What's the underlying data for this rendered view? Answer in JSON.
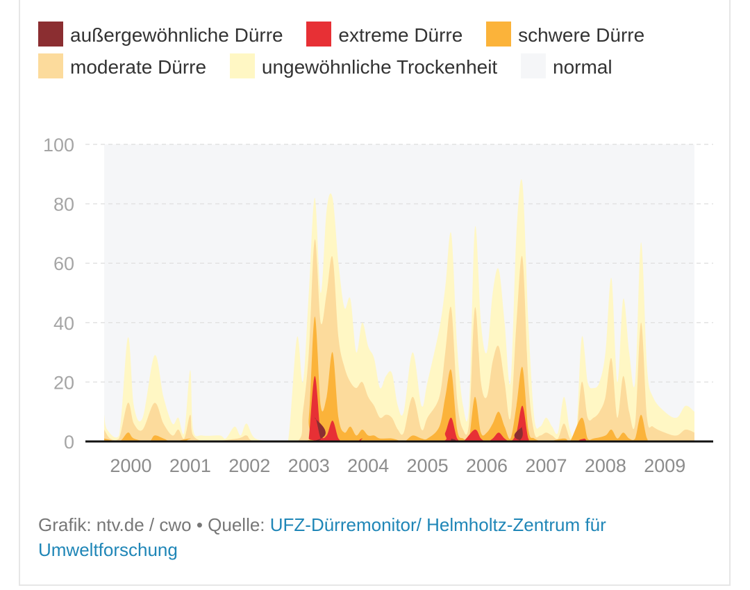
{
  "colors": {
    "aussergewoehnlich": "#8b2e31",
    "extrem": "#e73035",
    "schwer": "#fbb33a",
    "moderat": "#fcdb9c",
    "ungewoehnlich": "#fff7c4",
    "normal": "#f5f6f8"
  },
  "footer": {
    "prefix": "Grafik: ntv.de / cwo • Quelle: ",
    "source": "UFZ-Dürremonitor/ Helmholtz-Zentrum für Umweltforschung"
  },
  "chart_data": {
    "type": "area",
    "stacking": "cumulative",
    "ylim": [
      0,
      100
    ],
    "xlim": [
      1999.55,
      2009.5
    ],
    "yticks": [
      0,
      20,
      40,
      60,
      80,
      100
    ],
    "xticks": [
      2000,
      2001,
      2002,
      2003,
      2004,
      2005,
      2006,
      2007,
      2008,
      2009
    ],
    "grid": "horizontal dashed",
    "legend_position": "top",
    "legend": [
      {
        "key": "aussergewoehnlich",
        "label": "außergewöhnliche Dürre"
      },
      {
        "key": "extrem",
        "label": "extreme Dürre"
      },
      {
        "key": "schwer",
        "label": "schwere Dürre"
      },
      {
        "key": "moderat",
        "label": "moderate Dürre"
      },
      {
        "key": "ungewoehnlich",
        "label": "ungewöhnliche Trockenheit"
      },
      {
        "key": "normal",
        "label": "normal"
      }
    ],
    "series": [
      {
        "key": "ungewoehnlich",
        "points": [
          [
            1999.55,
            9
          ],
          [
            1999.6,
            4
          ],
          [
            1999.8,
            2
          ],
          [
            1999.95,
            35
          ],
          [
            2000.05,
            12
          ],
          [
            2000.2,
            8
          ],
          [
            2000.4,
            29
          ],
          [
            2000.55,
            15
          ],
          [
            2000.7,
            6
          ],
          [
            2000.8,
            8
          ],
          [
            2000.9,
            3
          ],
          [
            2001.0,
            24
          ],
          [
            2001.05,
            4
          ],
          [
            2001.2,
            2
          ],
          [
            2001.5,
            2
          ],
          [
            2001.6,
            1
          ],
          [
            2001.75,
            5
          ],
          [
            2001.85,
            2
          ],
          [
            2001.95,
            6
          ],
          [
            2002.1,
            1
          ],
          [
            2002.5,
            0
          ],
          [
            2002.65,
            0
          ],
          [
            2002.8,
            35
          ],
          [
            2002.9,
            20
          ],
          [
            2003.0,
            50
          ],
          [
            2003.1,
            82
          ],
          [
            2003.2,
            50
          ],
          [
            2003.3,
            78
          ],
          [
            2003.4,
            82
          ],
          [
            2003.5,
            60
          ],
          [
            2003.6,
            45
          ],
          [
            2003.7,
            48
          ],
          [
            2003.8,
            30
          ],
          [
            2003.9,
            40
          ],
          [
            2004.0,
            32
          ],
          [
            2004.1,
            28
          ],
          [
            2004.2,
            18
          ],
          [
            2004.3,
            22
          ],
          [
            2004.4,
            23
          ],
          [
            2004.5,
            12
          ],
          [
            2004.6,
            10
          ],
          [
            2004.75,
            30
          ],
          [
            2004.9,
            12
          ],
          [
            2005.0,
            20
          ],
          [
            2005.2,
            38
          ],
          [
            2005.3,
            52
          ],
          [
            2005.4,
            70
          ],
          [
            2005.5,
            32
          ],
          [
            2005.6,
            12
          ],
          [
            2005.7,
            12
          ],
          [
            2005.8,
            72
          ],
          [
            2005.9,
            40
          ],
          [
            2006.0,
            30
          ],
          [
            2006.1,
            50
          ],
          [
            2006.2,
            58
          ],
          [
            2006.3,
            40
          ],
          [
            2006.4,
            20
          ],
          [
            2006.5,
            70
          ],
          [
            2006.6,
            87
          ],
          [
            2006.7,
            40
          ],
          [
            2006.8,
            8
          ],
          [
            2006.9,
            5
          ],
          [
            2007.0,
            8
          ],
          [
            2007.1,
            5
          ],
          [
            2007.2,
            3
          ],
          [
            2007.3,
            15
          ],
          [
            2007.4,
            4
          ],
          [
            2007.5,
            0
          ],
          [
            2007.6,
            35
          ],
          [
            2007.7,
            20
          ],
          [
            2007.8,
            18
          ],
          [
            2007.9,
            20
          ],
          [
            2008.0,
            30
          ],
          [
            2008.1,
            55
          ],
          [
            2008.2,
            20
          ],
          [
            2008.3,
            48
          ],
          [
            2008.4,
            30
          ],
          [
            2008.5,
            20
          ],
          [
            2008.6,
            67
          ],
          [
            2008.7,
            25
          ],
          [
            2008.8,
            15
          ],
          [
            2009.0,
            10
          ],
          [
            2009.2,
            8
          ],
          [
            2009.35,
            12
          ],
          [
            2009.5,
            10
          ]
        ]
      },
      {
        "key": "moderat",
        "points": [
          [
            1999.55,
            4
          ],
          [
            1999.65,
            1
          ],
          [
            1999.8,
            1
          ],
          [
            1999.95,
            13
          ],
          [
            2000.05,
            6
          ],
          [
            2000.2,
            4
          ],
          [
            2000.4,
            13
          ],
          [
            2000.55,
            6
          ],
          [
            2000.7,
            2
          ],
          [
            2000.8,
            4
          ],
          [
            2000.9,
            1
          ],
          [
            2001.0,
            9
          ],
          [
            2001.05,
            2
          ],
          [
            2001.3,
            0
          ],
          [
            2001.8,
            1
          ],
          [
            2001.95,
            2
          ],
          [
            2002.1,
            0
          ],
          [
            2002.8,
            0
          ],
          [
            2002.9,
            10
          ],
          [
            2003.0,
            30
          ],
          [
            2003.1,
            68
          ],
          [
            2003.2,
            40
          ],
          [
            2003.3,
            50
          ],
          [
            2003.4,
            62
          ],
          [
            2003.5,
            35
          ],
          [
            2003.6,
            25
          ],
          [
            2003.7,
            20
          ],
          [
            2003.8,
            18
          ],
          [
            2003.9,
            20
          ],
          [
            2004.0,
            15
          ],
          [
            2004.1,
            12
          ],
          [
            2004.2,
            8
          ],
          [
            2004.3,
            9
          ],
          [
            2004.4,
            8
          ],
          [
            2004.5,
            4
          ],
          [
            2004.6,
            3
          ],
          [
            2004.75,
            15
          ],
          [
            2004.9,
            4
          ],
          [
            2005.0,
            8
          ],
          [
            2005.2,
            15
          ],
          [
            2005.3,
            30
          ],
          [
            2005.4,
            45
          ],
          [
            2005.5,
            14
          ],
          [
            2005.6,
            4
          ],
          [
            2005.7,
            6
          ],
          [
            2005.8,
            45
          ],
          [
            2005.9,
            20
          ],
          [
            2006.0,
            15
          ],
          [
            2006.1,
            27
          ],
          [
            2006.2,
            32
          ],
          [
            2006.3,
            20
          ],
          [
            2006.4,
            8
          ],
          [
            2006.5,
            40
          ],
          [
            2006.6,
            62
          ],
          [
            2006.7,
            20
          ],
          [
            2006.8,
            3
          ],
          [
            2006.9,
            2
          ],
          [
            2007.0,
            3
          ],
          [
            2007.1,
            2
          ],
          [
            2007.2,
            1
          ],
          [
            2007.3,
            6
          ],
          [
            2007.4,
            1
          ],
          [
            2007.5,
            0
          ],
          [
            2007.6,
            20
          ],
          [
            2007.7,
            8
          ],
          [
            2007.8,
            8
          ],
          [
            2007.9,
            10
          ],
          [
            2008.0,
            15
          ],
          [
            2008.1,
            28
          ],
          [
            2008.2,
            8
          ],
          [
            2008.3,
            22
          ],
          [
            2008.4,
            10
          ],
          [
            2008.5,
            6
          ],
          [
            2008.6,
            40
          ],
          [
            2008.7,
            8
          ],
          [
            2008.8,
            5
          ],
          [
            2009.0,
            3
          ],
          [
            2009.2,
            2
          ],
          [
            2009.35,
            4
          ],
          [
            2009.5,
            3
          ]
        ]
      },
      {
        "key": "schwer",
        "points": [
          [
            1999.55,
            1
          ],
          [
            1999.8,
            0
          ],
          [
            1999.95,
            3
          ],
          [
            2000.05,
            1
          ],
          [
            2000.3,
            0
          ],
          [
            2000.4,
            2
          ],
          [
            2000.55,
            1
          ],
          [
            2000.7,
            0
          ],
          [
            2001.0,
            1
          ],
          [
            2001.1,
            0
          ],
          [
            2002.9,
            0
          ],
          [
            2003.0,
            8
          ],
          [
            2003.1,
            42
          ],
          [
            2003.2,
            12
          ],
          [
            2003.3,
            15
          ],
          [
            2003.4,
            30
          ],
          [
            2003.5,
            8
          ],
          [
            2003.6,
            3
          ],
          [
            2003.7,
            5
          ],
          [
            2003.8,
            2
          ],
          [
            2003.9,
            4
          ],
          [
            2004.0,
            2
          ],
          [
            2004.1,
            2
          ],
          [
            2004.2,
            1
          ],
          [
            2004.4,
            1
          ],
          [
            2004.6,
            0
          ],
          [
            2004.75,
            2
          ],
          [
            2004.9,
            1
          ],
          [
            2005.0,
            1
          ],
          [
            2005.2,
            5
          ],
          [
            2005.3,
            15
          ],
          [
            2005.4,
            24
          ],
          [
            2005.5,
            4
          ],
          [
            2005.6,
            1
          ],
          [
            2005.7,
            1
          ],
          [
            2005.8,
            15
          ],
          [
            2005.9,
            3
          ],
          [
            2006.0,
            3
          ],
          [
            2006.1,
            6
          ],
          [
            2006.2,
            10
          ],
          [
            2006.3,
            5
          ],
          [
            2006.4,
            1
          ],
          [
            2006.5,
            12
          ],
          [
            2006.6,
            25
          ],
          [
            2006.7,
            4
          ],
          [
            2006.8,
            1
          ],
          [
            2007.0,
            0
          ],
          [
            2007.3,
            1
          ],
          [
            2007.4,
            0
          ],
          [
            2007.6,
            8
          ],
          [
            2007.7,
            1
          ],
          [
            2007.8,
            1
          ],
          [
            2008.0,
            2
          ],
          [
            2008.1,
            4
          ],
          [
            2008.2,
            1
          ],
          [
            2008.3,
            3
          ],
          [
            2008.4,
            1
          ],
          [
            2008.5,
            1
          ],
          [
            2008.6,
            9
          ],
          [
            2008.7,
            1
          ],
          [
            2008.8,
            0
          ],
          [
            2009.5,
            0
          ]
        ]
      },
      {
        "key": "extrem",
        "points": [
          [
            1999.55,
            0
          ],
          [
            2002.95,
            0
          ],
          [
            2003.0,
            1
          ],
          [
            2003.1,
            22
          ],
          [
            2003.2,
            3
          ],
          [
            2003.3,
            2
          ],
          [
            2003.4,
            7
          ],
          [
            2003.5,
            1
          ],
          [
            2003.6,
            0
          ],
          [
            2003.8,
            0
          ],
          [
            2003.9,
            1
          ],
          [
            2004.0,
            0
          ],
          [
            2005.2,
            0
          ],
          [
            2005.3,
            3
          ],
          [
            2005.4,
            8
          ],
          [
            2005.5,
            1
          ],
          [
            2005.6,
            0
          ],
          [
            2005.8,
            4
          ],
          [
            2005.9,
            1
          ],
          [
            2006.0,
            0
          ],
          [
            2006.1,
            1
          ],
          [
            2006.2,
            3
          ],
          [
            2006.3,
            1
          ],
          [
            2006.4,
            0
          ],
          [
            2006.5,
            3
          ],
          [
            2006.6,
            12
          ],
          [
            2006.7,
            1
          ],
          [
            2006.8,
            0
          ],
          [
            2007.6,
            0
          ],
          [
            2007.65,
            1
          ],
          [
            2007.7,
            0
          ],
          [
            2009.5,
            0
          ]
        ]
      },
      {
        "key": "aussergewoehnlich",
        "points": [
          [
            1999.55,
            0
          ],
          [
            2003.0,
            0
          ],
          [
            2003.1,
            8
          ],
          [
            2003.2,
            1
          ],
          [
            2003.3,
            0
          ],
          [
            2005.3,
            0
          ],
          [
            2005.4,
            1
          ],
          [
            2005.5,
            0
          ],
          [
            2006.5,
            0
          ],
          [
            2006.6,
            5
          ],
          [
            2006.7,
            0
          ],
          [
            2009.5,
            0
          ]
        ]
      }
    ]
  }
}
